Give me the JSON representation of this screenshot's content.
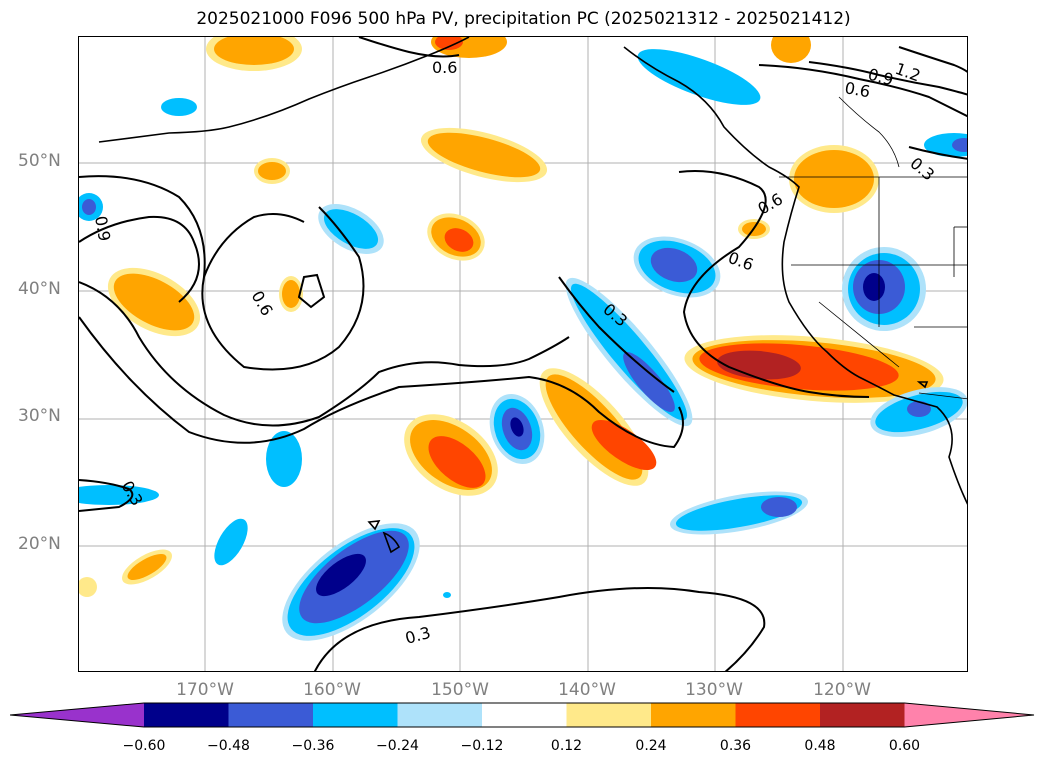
{
  "title": "2025021000 F096 500 hPa PV, precipitation PC (2025021312 - 2025021412)",
  "lat_labels": [
    "50°N",
    "40°N",
    "30°N",
    "20°N"
  ],
  "lon_labels": [
    "170°W",
    "160°W",
    "150°W",
    "140°W",
    "130°W",
    "120°W"
  ],
  "contour_labels": [
    "1.2",
    "0.9",
    "0.6",
    "0.6",
    "0.3",
    "0.6",
    "0.6",
    "0.9",
    "0.6",
    "0.3",
    "0.3",
    "0.3"
  ],
  "colorbar": {
    "ticks": [
      "−0.60",
      "−0.48",
      "−0.36",
      "−0.24",
      "−0.12",
      "0.12",
      "0.24",
      "0.36",
      "0.48",
      "0.60"
    ],
    "colors": [
      "#9932cc",
      "#00008b",
      "#3b5bd6",
      "#00bfff",
      "#aee2fa",
      "#ffffff",
      "#ffe98a",
      "#ffa500",
      "#ff4500",
      "#b22222",
      "#ff82ab"
    ]
  }
}
